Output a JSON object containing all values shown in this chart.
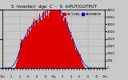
{
  "title": "S  lnverter/  dge  C  -  S  lnPUT/OUTPUT",
  "legend_actual": "ACTUAL",
  "legend_average": "AVERAGE",
  "bg_color": "#c8c8c8",
  "plot_bg_color": "#c8c8c8",
  "bar_color": "#dd0000",
  "avg_line_color": "#0000cc",
  "grid_color": "#888888",
  "ylim": [
    0,
    4000
  ],
  "n_points": 288,
  "peak_value": 3800,
  "title_fontsize": 4.0,
  "tick_fontsize": 2.8,
  "legend_fontsize": 3.2,
  "right_ytick_labels": [
    "4000",
    "3500",
    "3000",
    "2500",
    "2000",
    "1500",
    "1000",
    "500",
    "0"
  ]
}
